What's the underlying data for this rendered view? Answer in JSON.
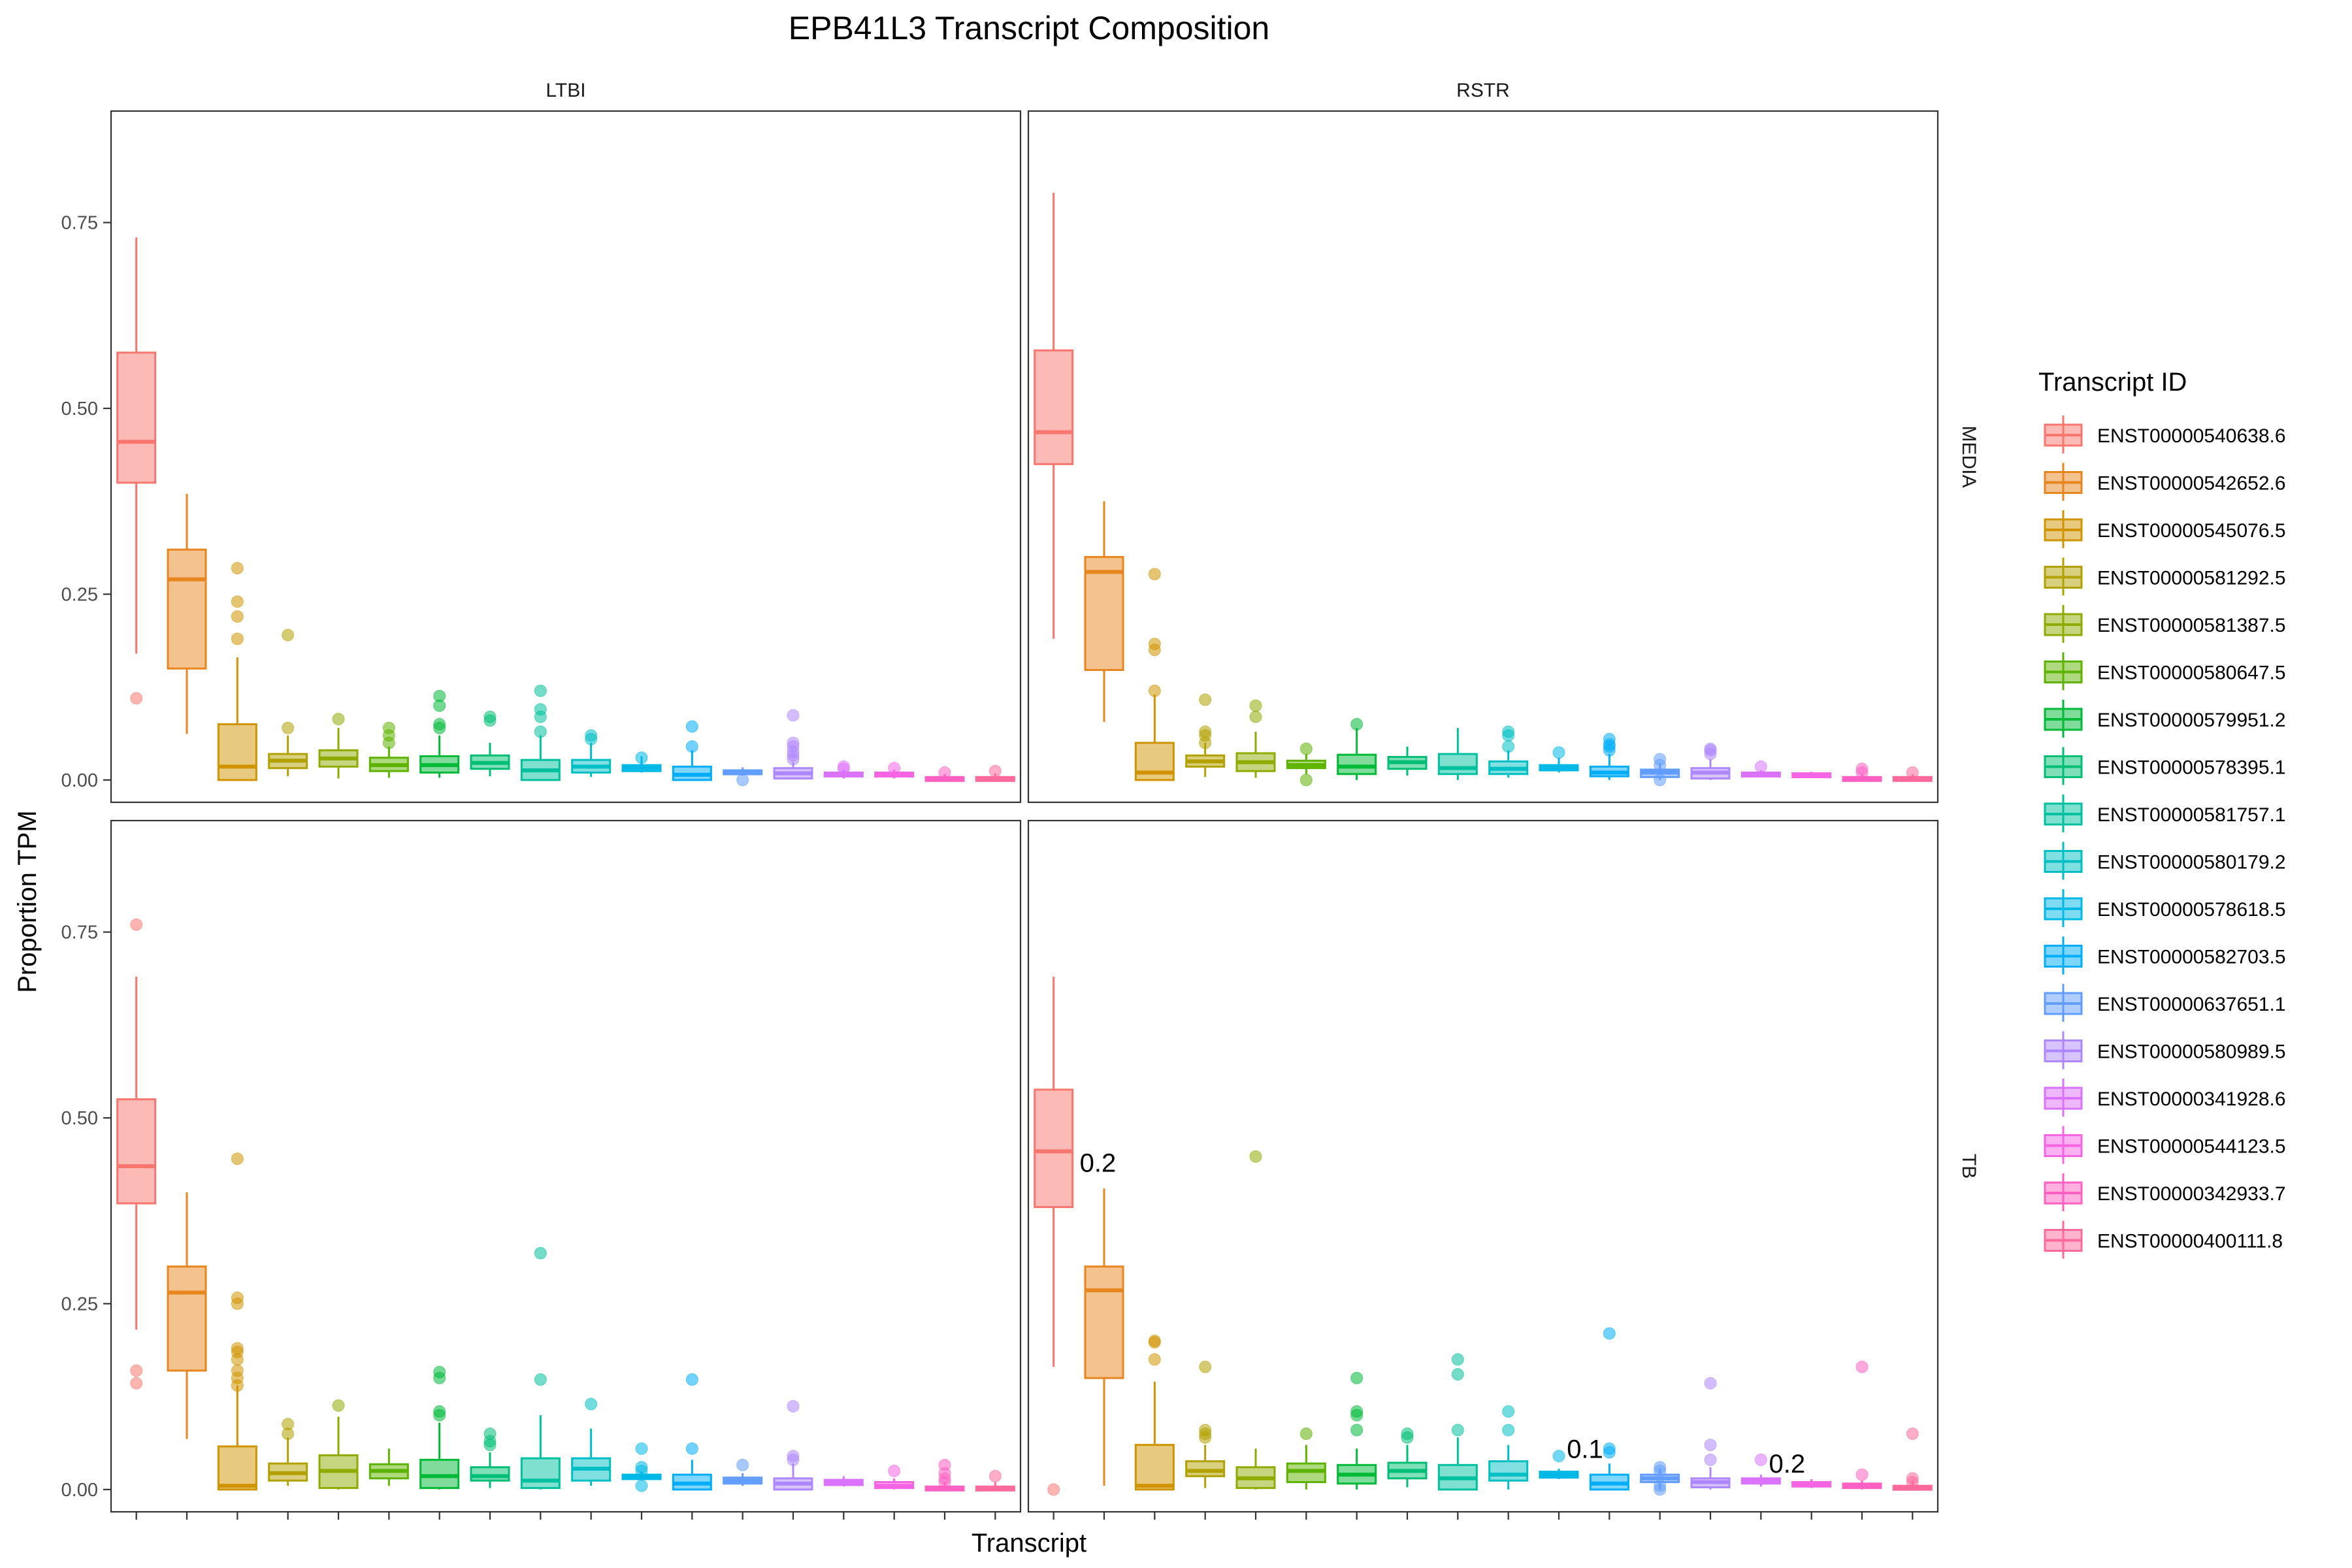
{
  "chart_data": {
    "type": "boxplot",
    "title": "EPB41L3 Transcript Composition",
    "xlabel": "Transcript",
    "ylabel": "Proportion TPM",
    "ylim": [
      -0.03,
      0.9
    ],
    "yticks": [
      0.0,
      0.25,
      0.5,
      0.75
    ],
    "ytick_labels": [
      "0.00",
      "0.25",
      "0.50",
      "0.75"
    ],
    "grid": false,
    "legend_position": "right",
    "legend_title": "Transcript ID",
    "facet_columns": [
      "LTBI",
      "RSTR"
    ],
    "facet_rows": [
      "MEDIA",
      "TB"
    ],
    "transcripts": [
      "ENST00000540638.6",
      "ENST00000542652.6",
      "ENST00000545076.5",
      "ENST00000581292.5",
      "ENST00000581387.5",
      "ENST00000580647.5",
      "ENST00000579951.2",
      "ENST00000578395.1",
      "ENST00000581757.1",
      "ENST00000580179.2",
      "ENST00000578618.5",
      "ENST00000582703.5",
      "ENST00000637651.1",
      "ENST00000580989.5",
      "ENST00000341928.6",
      "ENST00000544123.5",
      "ENST00000342933.7",
      "ENST00000400111.8"
    ],
    "colors": [
      "#F8766D",
      "#E7851E",
      "#D09400",
      "#B2A100",
      "#8EAB00",
      "#5EB300",
      "#00BA38",
      "#00BF74",
      "#00C19F",
      "#00BFC4",
      "#00B8E5",
      "#00ADFA",
      "#619CFF",
      "#AE87FF",
      "#DB72FB",
      "#F564E3",
      "#FF61C3",
      "#FF699C"
    ],
    "panels": [
      {
        "col": "LTBI",
        "row": "MEDIA",
        "boxes": [
          [
            0.17,
            0.4,
            0.455,
            0.575,
            0.73
          ],
          [
            0.062,
            0.15,
            0.27,
            0.31,
            0.385
          ],
          [
            0.0,
            0.0,
            0.018,
            0.075,
            0.165
          ],
          [
            0.005,
            0.016,
            0.026,
            0.035,
            0.06
          ],
          [
            0.002,
            0.018,
            0.029,
            0.04,
            0.07
          ],
          [
            0.003,
            0.012,
            0.02,
            0.03,
            0.045
          ],
          [
            0.003,
            0.01,
            0.02,
            0.032,
            0.06
          ],
          [
            0.005,
            0.015,
            0.023,
            0.033,
            0.05
          ],
          [
            0.0,
            0.0,
            0.013,
            0.027,
            0.06
          ],
          [
            0.004,
            0.01,
            0.018,
            0.027,
            0.05
          ],
          [
            0.01,
            0.012,
            0.016,
            0.02,
            0.032
          ],
          [
            0.0,
            0.0,
            0.007,
            0.018,
            0.04
          ],
          [
            0.006,
            0.008,
            0.01,
            0.013,
            0.017
          ],
          [
            0.002,
            0.002,
            0.009,
            0.016,
            0.024
          ],
          [
            0.002,
            0.005,
            0.008,
            0.01,
            0.014
          ],
          [
            0.002,
            0.005,
            0.007,
            0.01,
            0.014
          ],
          [
            0.0,
            0.0,
            0.002,
            0.004,
            0.008
          ],
          [
            0.0,
            0.0,
            0.002,
            0.004,
            0.009
          ]
        ],
        "outliers": [
          [
            0.11
          ],
          [],
          [
            0.285,
            0.24,
            0.22,
            0.19
          ],
          [
            0.07,
            0.195
          ],
          [
            0.082
          ],
          [
            0.05,
            0.06,
            0.07
          ],
          [
            0.07,
            0.075,
            0.1,
            0.113
          ],
          [
            0.08,
            0.085
          ],
          [
            0.065,
            0.085,
            0.095,
            0.12
          ],
          [
            0.055,
            0.06
          ],
          [
            0.03
          ],
          [
            0.045,
            0.072
          ],
          [
            0.0
          ],
          [
            0.028,
            0.033,
            0.038,
            0.045,
            0.05,
            0.087
          ],
          [
            0.015,
            0.018
          ],
          [
            0.016
          ],
          [
            0.01
          ],
          [
            0.012
          ]
        ]
      },
      {
        "col": "RSTR",
        "row": "MEDIA",
        "boxes": [
          [
            0.19,
            0.425,
            0.468,
            0.578,
            0.79
          ],
          [
            0.078,
            0.148,
            0.28,
            0.3,
            0.375
          ],
          [
            0.0,
            0.0,
            0.01,
            0.05,
            0.115
          ],
          [
            0.004,
            0.018,
            0.025,
            0.033,
            0.05
          ],
          [
            0.003,
            0.012,
            0.024,
            0.036,
            0.065
          ],
          [
            0.008,
            0.016,
            0.02,
            0.026,
            0.035
          ],
          [
            0.0,
            0.008,
            0.018,
            0.034,
            0.07
          ],
          [
            0.006,
            0.015,
            0.024,
            0.031,
            0.045
          ],
          [
            0.0,
            0.008,
            0.016,
            0.035,
            0.07
          ],
          [
            0.003,
            0.008,
            0.015,
            0.025,
            0.04
          ],
          [
            0.01,
            0.013,
            0.016,
            0.02,
            0.03
          ],
          [
            0.0,
            0.005,
            0.01,
            0.018,
            0.035
          ],
          [
            0.0,
            0.004,
            0.01,
            0.014,
            0.022
          ],
          [
            0.0,
            0.002,
            0.01,
            0.016,
            0.028
          ],
          [
            0.004,
            0.006,
            0.008,
            0.01,
            0.013
          ],
          [
            0.003,
            0.005,
            0.007,
            0.009,
            0.011
          ],
          [
            0.0,
            0.0,
            0.002,
            0.004,
            0.008
          ],
          [
            0.0,
            0.0,
            0.002,
            0.004,
            0.008
          ]
        ],
        "outliers": [
          [],
          [],
          [
            0.12,
            0.175,
            0.183,
            0.277
          ],
          [
            0.05,
            0.06,
            0.065,
            0.108
          ],
          [
            0.085,
            0.1
          ],
          [
            0.0,
            0.042
          ],
          [
            0.075
          ],
          [],
          [],
          [
            0.045,
            0.06,
            0.065
          ],
          [
            0.037
          ],
          [
            0.04,
            0.045,
            0.048,
            0.055
          ],
          [
            0.0,
            0.02,
            0.028
          ],
          [
            0.035,
            0.04,
            0.042
          ],
          [
            0.018
          ],
          [],
          [
            0.01,
            0.015
          ],
          [
            0.01
          ]
        ]
      },
      {
        "col": "LTBI",
        "row": "TB",
        "boxes": [
          [
            0.215,
            0.385,
            0.435,
            0.525,
            0.69
          ],
          [
            0.068,
            0.16,
            0.265,
            0.3,
            0.4
          ],
          [
            0.0,
            0.0,
            0.005,
            0.058,
            0.14
          ],
          [
            0.005,
            0.012,
            0.022,
            0.035,
            0.07
          ],
          [
            0.0,
            0.002,
            0.025,
            0.046,
            0.098
          ],
          [
            0.005,
            0.015,
            0.025,
            0.034,
            0.055
          ],
          [
            0.0,
            0.002,
            0.018,
            0.04,
            0.09
          ],
          [
            0.002,
            0.012,
            0.018,
            0.03,
            0.05
          ],
          [
            0.0,
            0.002,
            0.012,
            0.042,
            0.1
          ],
          [
            0.005,
            0.012,
            0.028,
            0.042,
            0.082
          ],
          [
            0.012,
            0.014,
            0.017,
            0.02,
            0.024
          ],
          [
            0.0,
            0.0,
            0.008,
            0.02,
            0.04
          ],
          [
            0.005,
            0.008,
            0.012,
            0.016,
            0.022
          ],
          [
            0.0,
            0.0,
            0.008,
            0.015,
            0.035
          ],
          [
            0.004,
            0.006,
            0.01,
            0.013,
            0.018
          ],
          [
            0.0,
            0.002,
            0.005,
            0.01,
            0.015
          ],
          [
            0.0,
            0.0,
            0.002,
            0.004,
            0.01
          ],
          [
            0.0,
            0.0,
            0.002,
            0.004,
            0.01
          ]
        ],
        "outliers": [
          [
            0.143,
            0.16,
            0.76
          ],
          [],
          [
            0.14,
            0.15,
            0.16,
            0.175,
            0.185,
            0.19,
            0.25,
            0.258,
            0.445
          ],
          [
            0.075,
            0.088
          ],
          [
            0.113
          ],
          [],
          [
            0.1,
            0.105,
            0.15,
            0.158
          ],
          [
            0.06,
            0.065,
            0.075
          ],
          [
            0.148,
            0.318
          ],
          [
            0.115
          ],
          [
            0.005,
            0.025,
            0.03,
            0.055
          ],
          [
            0.055,
            0.148
          ],
          [
            0.033
          ],
          [
            0.04,
            0.045,
            0.112
          ],
          [],
          [
            0.025
          ],
          [
            0.01,
            0.015,
            0.022,
            0.033
          ],
          [
            0.018
          ]
        ]
      },
      {
        "col": "RSTR",
        "row": "TB",
        "boxes": [
          [
            0.165,
            0.38,
            0.455,
            0.538,
            0.69
          ],
          [
            0.005,
            0.15,
            0.268,
            0.3,
            0.405
          ],
          [
            0.0,
            0.0,
            0.005,
            0.06,
            0.145
          ],
          [
            0.002,
            0.018,
            0.025,
            0.038,
            0.06
          ],
          [
            0.0,
            0.002,
            0.015,
            0.03,
            0.055
          ],
          [
            0.0,
            0.01,
            0.025,
            0.035,
            0.06
          ],
          [
            0.0,
            0.008,
            0.02,
            0.033,
            0.055
          ],
          [
            0.003,
            0.015,
            0.025,
            0.036,
            0.06
          ],
          [
            0.0,
            0.0,
            0.015,
            0.033,
            0.07
          ],
          [
            0.0,
            0.012,
            0.02,
            0.038,
            0.06
          ],
          [
            0.014,
            0.016,
            0.02,
            0.024,
            0.028
          ],
          [
            0.0,
            0.0,
            0.008,
            0.02,
            0.035
          ],
          [
            0.0,
            0.01,
            0.015,
            0.02,
            0.028
          ],
          [
            0.0,
            0.003,
            0.01,
            0.015,
            0.03
          ],
          [
            0.004,
            0.008,
            0.012,
            0.015,
            0.02
          ],
          [
            0.002,
            0.004,
            0.007,
            0.01,
            0.014
          ],
          [
            0.0,
            0.002,
            0.005,
            0.008,
            0.012
          ],
          [
            0.0,
            0.0,
            0.002,
            0.005,
            0.012
          ]
        ],
        "outliers": [
          [
            0.0
          ],
          [],
          [
            0.175,
            0.198,
            0.2
          ],
          [
            0.07,
            0.075,
            0.08,
            0.165
          ],
          [
            0.448
          ],
          [
            0.075
          ],
          [
            0.08,
            0.1,
            0.105,
            0.15
          ],
          [
            0.07,
            0.075
          ],
          [
            0.08,
            0.155,
            0.175
          ],
          [
            0.08,
            0.105
          ],
          [
            0.045
          ],
          [
            0.05,
            0.055,
            0.21
          ],
          [
            0.0,
            0.005,
            0.025,
            0.03
          ],
          [
            0.04,
            0.06,
            0.143
          ],
          [
            0.04
          ],
          [],
          [
            0.02,
            0.165
          ],
          [
            0.01,
            0.015,
            0.075
          ]
        ]
      }
    ],
    "annotations": [
      {
        "panel": "RSTR-TB",
        "text": "0.2",
        "transcript_index": 0,
        "y": 0.44
      },
      {
        "panel": "RSTR-TB",
        "text": "0.1",
        "transcript_index": 10,
        "y": 0.055
      },
      {
        "panel": "RSTR-TB",
        "text": "0.2",
        "transcript_index": 14,
        "y": 0.035
      }
    ]
  }
}
